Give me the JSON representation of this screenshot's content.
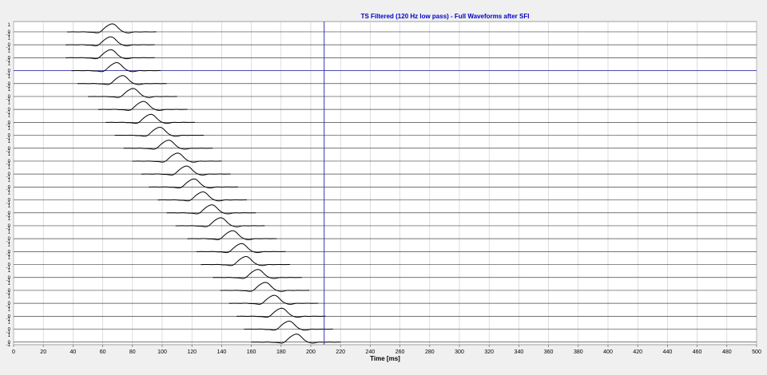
{
  "chart_data": {
    "type": "line",
    "title": "TS Filtered (120 Hz low pass) - Full Waveforms after SFI",
    "xlabel": "Time [ms]",
    "xlim": [
      0,
      500
    ],
    "x_ticks": [
      "0",
      "20",
      "40",
      "60",
      "80",
      "100",
      "120",
      "140",
      "160",
      "180",
      "200",
      "220",
      "240",
      "260",
      "280",
      "300",
      "320",
      "340",
      "360",
      "380",
      "400",
      "420",
      "440",
      "460",
      "480",
      "500"
    ],
    "trace_tick_labels": [
      "1",
      "0",
      "-1"
    ],
    "grid": true,
    "cursor_time_ms": 209,
    "highlight_trace_index": 3,
    "series": [
      {
        "peak_ms": 66
      },
      {
        "peak_ms": 65
      },
      {
        "peak_ms": 65
      },
      {
        "peak_ms": 69
      },
      {
        "peak_ms": 73
      },
      {
        "peak_ms": 80
      },
      {
        "peak_ms": 87
      },
      {
        "peak_ms": 92
      },
      {
        "peak_ms": 98
      },
      {
        "peak_ms": 104
      },
      {
        "peak_ms": 110
      },
      {
        "peak_ms": 116
      },
      {
        "peak_ms": 121
      },
      {
        "peak_ms": 127
      },
      {
        "peak_ms": 133
      },
      {
        "peak_ms": 139
      },
      {
        "peak_ms": 147
      },
      {
        "peak_ms": 153
      },
      {
        "peak_ms": 156
      },
      {
        "peak_ms": 164
      },
      {
        "peak_ms": 169
      },
      {
        "peak_ms": 175
      },
      {
        "peak_ms": 180
      },
      {
        "peak_ms": 185
      },
      {
        "peak_ms": 190
      }
    ],
    "colors": {
      "trace": "#000000",
      "title": "#0000cc",
      "cursor": "#3333aa",
      "grid": "#c8c8c8"
    }
  }
}
